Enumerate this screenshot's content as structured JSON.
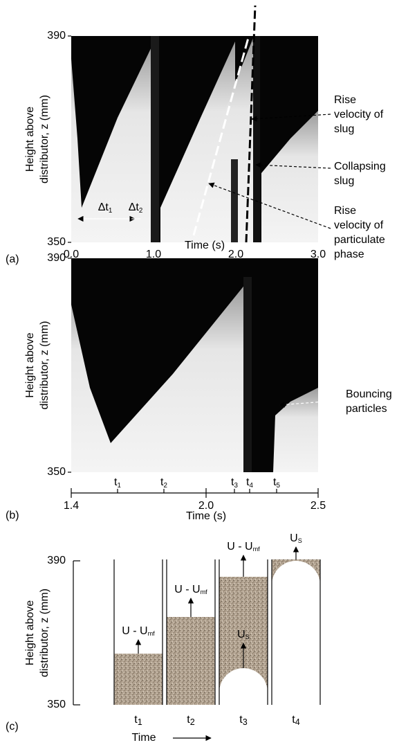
{
  "panels": [
    {
      "label": "(a)",
      "y_label": [
        "Height above",
        "distributor, z (mm)"
      ],
      "y_ticks": [
        "390",
        "350"
      ],
      "x_ticks": [
        "0.0",
        "1.0",
        "2.0",
        "3.0"
      ],
      "x_label": "Time (s)",
      "intervals": [
        {
          "base": "Δt",
          "sub": "1"
        },
        {
          "base": "Δt",
          "sub": "2"
        }
      ],
      "annotations": [
        [
          "Rise",
          "velocity of",
          "slug"
        ],
        [
          "Collapsing",
          "slug"
        ],
        [
          "Rise",
          "velocity of",
          "particulate",
          "phase"
        ]
      ]
    },
    {
      "label": "(b)",
      "y_label": [
        "Height above",
        "distributor, z (mm)"
      ],
      "y_ticks": [
        "390",
        "350"
      ],
      "time_marks": [
        {
          "base": "t",
          "sub": "1"
        },
        {
          "base": "t",
          "sub": "2"
        },
        {
          "base": "t",
          "sub": "3"
        },
        {
          "base": "t",
          "sub": "4"
        },
        {
          "base": "t",
          "sub": "5"
        }
      ],
      "x_ticks": [
        "1.4",
        "2.0",
        "2.5"
      ],
      "x_label": "Time (s)",
      "annotations": [
        [
          "Bouncing",
          "particles"
        ]
      ]
    },
    {
      "label": "(c)",
      "y_label": [
        "Height above",
        "distributor, z (mm)"
      ],
      "y_ticks": [
        "390",
        "350"
      ],
      "columns": [
        {
          "time": {
            "base": "t",
            "sub": "1"
          },
          "arrows": [
            {
              "base": "U - U",
              "sub": "mf"
            }
          ]
        },
        {
          "time": {
            "base": "t",
            "sub": "2"
          },
          "arrows": [
            {
              "base": "U - U",
              "sub": "mf"
            }
          ]
        },
        {
          "time": {
            "base": "t",
            "sub": "3"
          },
          "arrows": [
            {
              "base": "U - U",
              "sub": "mf"
            },
            {
              "base": "U",
              "sub": "S"
            }
          ]
        },
        {
          "time": {
            "base": "t",
            "sub": "4"
          },
          "arrows": [
            {
              "base": "U",
              "sub": "S"
            }
          ]
        }
      ],
      "x_label": "Time"
    }
  ]
}
